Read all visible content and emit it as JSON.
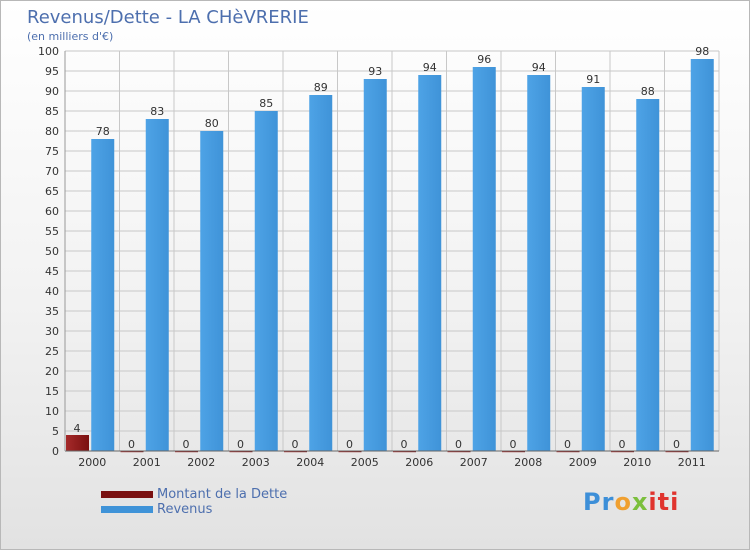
{
  "title": "Revenus/Dette - LA CHèVRERIE",
  "subtitle": "(en milliers d'€)",
  "brand": {
    "parts": [
      "Pr",
      "o",
      "x",
      "iti"
    ]
  },
  "colors": {
    "debt": "#7a1010",
    "revenue": "#3f93d8",
    "text": "#4d6fae",
    "grid": "#c8c8c8"
  },
  "chart_data": {
    "type": "bar",
    "title": "Revenus/Dette - LA CHèVRERIE",
    "ylabel": "(en milliers d'€)",
    "xlabel": "",
    "ylim": [
      0,
      100
    ],
    "ytick_step": 5,
    "grid": true,
    "legend_position": "bottom-left",
    "categories": [
      "2000",
      "2001",
      "2002",
      "2003",
      "2004",
      "2005",
      "2006",
      "2007",
      "2008",
      "2009",
      "2010",
      "2011"
    ],
    "series": [
      {
        "name": "Montant de la Dette",
        "values": [
          4,
          0,
          0,
          0,
          0,
          0,
          0,
          0,
          0,
          0,
          0,
          0
        ]
      },
      {
        "name": "Revenus",
        "values": [
          78,
          83,
          80,
          85,
          89,
          93,
          94,
          96,
          94,
          91,
          88,
          98
        ]
      }
    ]
  }
}
